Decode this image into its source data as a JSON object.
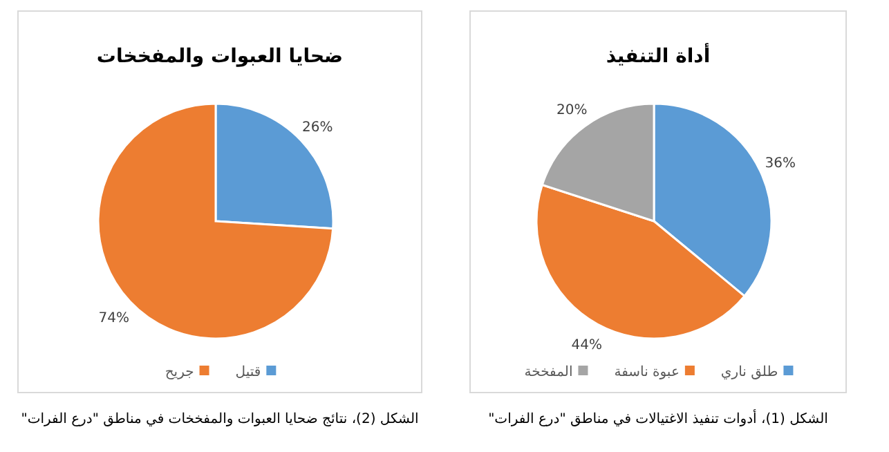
{
  "chart_data": [
    {
      "type": "pie",
      "title": "أداة التنفيذ",
      "categories": [
        "طلق ناري",
        "عبوة ناسفة",
        "المفخخة"
      ],
      "values": [
        36,
        44,
        20
      ],
      "colors": [
        "#5b9bd5",
        "#ed7d31",
        "#a5a5a5"
      ],
      "value_labels": [
        "36%",
        "44%",
        "20%"
      ],
      "legend": "bottom",
      "annotations": [
        "الشكل (1)، أدوات تنفيذ الاغتيالات في مناطق \"درع الفرات\""
      ]
    },
    {
      "type": "pie",
      "title": "ضحايا العبوات والمفخخات",
      "categories": [
        "قتيل",
        "جريح"
      ],
      "values": [
        26,
        74
      ],
      "colors": [
        "#5b9bd5",
        "#ed7d31"
      ],
      "value_labels": [
        "26%",
        "74%"
      ],
      "legend": "bottom",
      "annotations": [
        "الشكل (2)، نتائج ضحايا العبوات والمفخخات في مناطق \"درع الفرات\""
      ]
    }
  ]
}
